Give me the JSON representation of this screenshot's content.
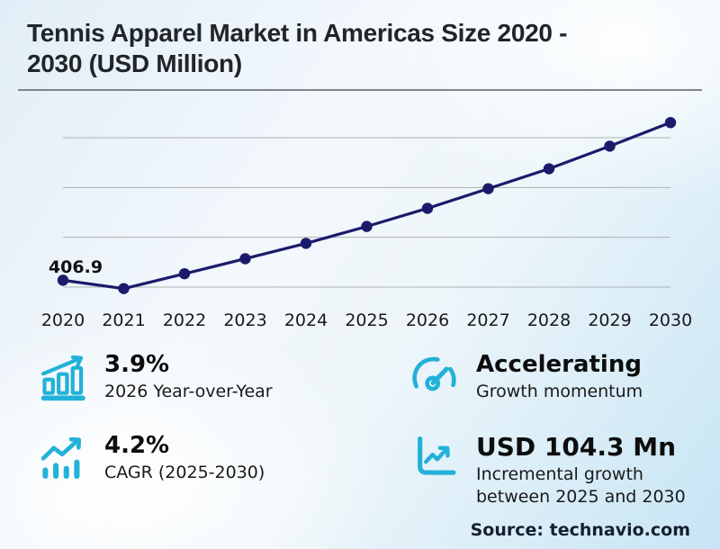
{
  "title": {
    "line1": "Tennis Apparel Market in Americas Size 2020 -",
    "line2": "2030 (USD Million)"
  },
  "chart_data": {
    "type": "line",
    "x": [
      2020,
      2021,
      2022,
      2023,
      2024,
      2025,
      2026,
      2027,
      2028,
      2029,
      2030
    ],
    "series": [
      {
        "name": "Tennis Apparel Market in Americas (USD Million)",
        "values": [
          406.9,
          398.5,
          413.4,
          428.5,
          443.9,
          460.9,
          479.1,
          498.8,
          518.8,
          541.5,
          565.2
        ]
      }
    ],
    "point_label": {
      "x": 2020,
      "text": "406.9"
    },
    "title": "",
    "xlabel": "",
    "ylabel": "",
    "ylim": [
      385,
      590
    ],
    "gridlines": [
      400,
      450,
      500,
      550
    ],
    "grid": "horizontal-only",
    "legend_position": "none",
    "line_color": "#1b1b6b",
    "grid_color": "#aeb1b4"
  },
  "stats": [
    {
      "icon": "bar-chart-growth-icon",
      "value": "3.9%",
      "label": "2026 Year-over-Year"
    },
    {
      "icon": "cagr-trend-icon",
      "value": "4.2%",
      "label": "CAGR (2025-2030)"
    },
    {
      "icon": "speedometer-icon",
      "value": "Accelerating",
      "label": "Growth momentum"
    },
    {
      "icon": "incremental-growth-icon",
      "value": "USD 104.3 Mn",
      "label": "Incremental growth between 2025 and 2030"
    }
  ],
  "footer": {
    "source": "Source: technavio.com"
  },
  "colors": {
    "accent": "#22b1d8",
    "line": "#1b1b6b",
    "background_tint": "#c7e5f5",
    "divider": "#7e868c",
    "text": "#212529"
  }
}
